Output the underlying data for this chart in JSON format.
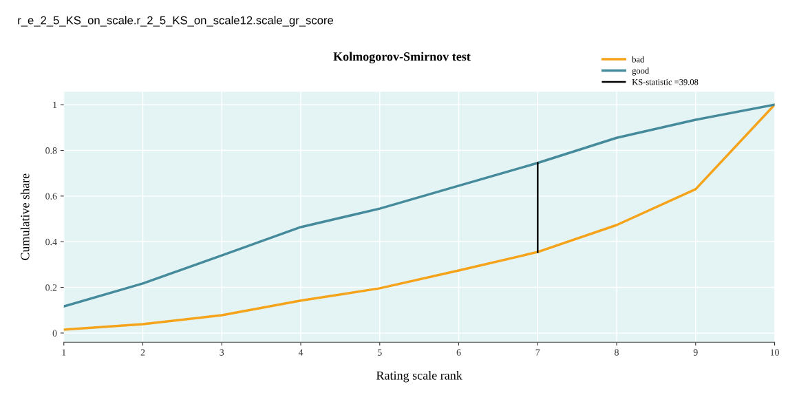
{
  "chart_data": {
    "type": "line",
    "title": "Kolmogorov-Smirnov test",
    "xlabel": "Rating scale rank",
    "ylabel": "Cumulative share",
    "annotations": [
      "r_e_2_5_KS_on_scale.r_2_5_KS_on_scale12.scale_gr_score"
    ],
    "x": [
      1,
      2,
      3,
      4,
      5,
      6,
      7,
      8,
      9,
      10
    ],
    "series": [
      {
        "name": "bad",
        "color": "#f5a31a",
        "values": [
          0.015,
          0.039,
          0.078,
          0.142,
          0.196,
          0.274,
          0.355,
          0.473,
          0.63,
          1
        ]
      },
      {
        "name": "good",
        "color": "#468b9c",
        "values": [
          0.117,
          0.217,
          0.34,
          0.464,
          0.545,
          0.645,
          0.745,
          0.855,
          0.934,
          1
        ]
      },
      {
        "name": "KS-statistic =39.08",
        "color": "#000000",
        "x": [
          7,
          7
        ],
        "values": [
          0.355,
          0.745
        ]
      }
    ],
    "xlim": [
      1,
      10
    ],
    "xticks": [
      1,
      2,
      3,
      4,
      5,
      6,
      7,
      8,
      9,
      10
    ],
    "ylim": [
      -0.04,
      1.057
    ],
    "yticks": [
      0,
      0.2,
      0.4,
      0.6,
      0.8,
      1
    ],
    "grid": true,
    "legend": "top right"
  }
}
